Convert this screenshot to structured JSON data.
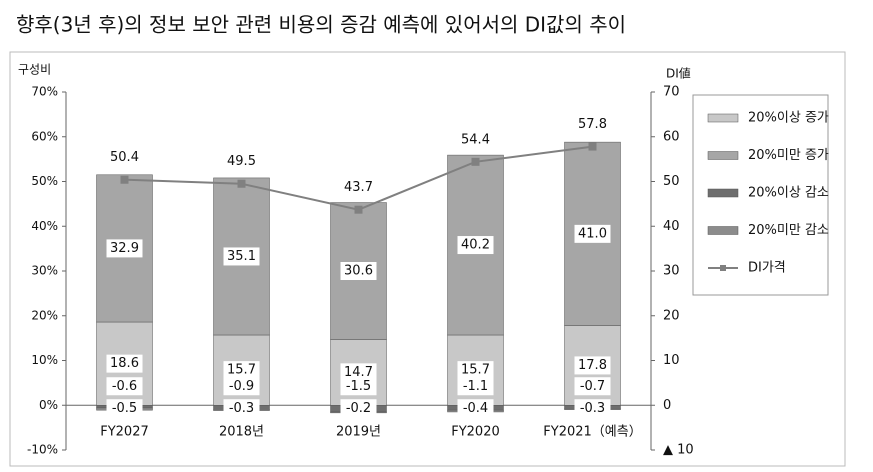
{
  "chart_data": {
    "type": "bar",
    "stacked": true,
    "title": "향후(3년 후)의 정보 보안 관련 비용의 증감 예측에 있어서의 DI값의 추이",
    "ylabel": "구성비",
    "y2label": "DI値",
    "categories": [
      "FY2027",
      "2018년",
      "2019년",
      "FY2020",
      "FY2021（예측）"
    ],
    "series": [
      {
        "name": "20%이상 증가",
        "color": "#c8c8c8",
        "values": [
          18.6,
          15.7,
          14.7,
          15.7,
          17.8
        ]
      },
      {
        "name": "20%미만 증가",
        "color": "#a6a6a6",
        "values": [
          32.9,
          35.1,
          30.6,
          40.2,
          41.0
        ],
        "value_labels": [
          "32.9",
          "35.1",
          "30.6",
          "40.2",
          "41.0"
        ]
      },
      {
        "name": "20%이상 감소",
        "color": "#6e6e6e",
        "values": [
          -0.6,
          -0.9,
          -1.5,
          -1.1,
          -0.7
        ]
      },
      {
        "name": "20%미만 감소",
        "color": "#8c8c8c",
        "values": [
          -0.5,
          -0.3,
          -0.2,
          -0.4,
          -0.3
        ]
      },
      {
        "name": "DI가격",
        "color": "#808080",
        "type": "line",
        "axis": "y2",
        "values": [
          50.4,
          49.5,
          43.7,
          54.4,
          57.8
        ]
      }
    ],
    "ylim": [
      -10,
      70
    ],
    "yticks": [
      {
        "value": -10,
        "label": "-10%"
      },
      {
        "value": 0,
        "label": "0%"
      },
      {
        "value": 10,
        "label": "10%"
      },
      {
        "value": 20,
        "label": "20%"
      },
      {
        "value": 30,
        "label": "30%"
      },
      {
        "value": 40,
        "label": "40%"
      },
      {
        "value": 50,
        "label": "50%"
      },
      {
        "value": 60,
        "label": "60%"
      },
      {
        "value": 70,
        "label": "70%"
      }
    ],
    "y2lim": [
      -10,
      70
    ],
    "y2ticks": [
      {
        "value": -10,
        "label": "▲ 10"
      },
      0,
      10,
      20,
      30,
      40,
      50,
      60,
      70
    ],
    "legend": "right"
  }
}
